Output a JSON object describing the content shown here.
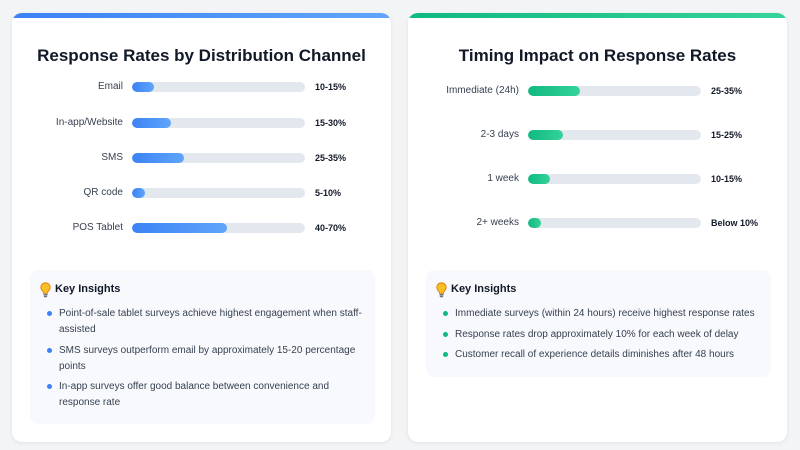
{
  "colors": {
    "blue_start": "#3b82f6",
    "blue_end": "#60a5fa",
    "green_start": "#10b981",
    "green_end": "#34d399",
    "bulb": "#fbbf24"
  },
  "left_panel": {
    "title": "Response Rates by Distribution Channel",
    "insights_title": "Key Insights",
    "insights": [
      "Point-of-sale tablet surveys achieve highest engagement when staff-assisted",
      "SMS surveys outperform email by approximately 15-20 percentage points",
      "In-app surveys offer good balance between convenience and response rate"
    ]
  },
  "right_panel": {
    "title": "Timing Impact on Response Rates",
    "insights_title": "Key Insights",
    "insights": [
      "Immediate surveys (within 24 hours) receive highest response rates",
      "Response rates drop approximately 10% for each week of delay",
      "Customer recall of experience details diminishes after 48 hours"
    ]
  },
  "chart_data": [
    {
      "type": "bar",
      "orientation": "horizontal",
      "title": "Response Rates by Distribution Channel",
      "categories": [
        "Email",
        "In-app/Website",
        "SMS",
        "QR code",
        "POS Tablet"
      ],
      "labels": [
        "10-15%",
        "15-30%",
        "25-35%",
        "5-10%",
        "40-70%"
      ],
      "values": [
        12.5,
        22.5,
        30,
        7.5,
        55
      ],
      "xlim": [
        0,
        100
      ]
    },
    {
      "type": "bar",
      "orientation": "horizontal",
      "title": "Timing Impact on Response Rates",
      "categories": [
        "Immediate (24h)",
        "2-3 days",
        "1 week",
        "2+ weeks"
      ],
      "labels": [
        "25-35%",
        "15-25%",
        "10-15%",
        "Below 10%"
      ],
      "values": [
        30,
        20,
        12.5,
        7.5
      ],
      "xlim": [
        0,
        100
      ]
    }
  ]
}
